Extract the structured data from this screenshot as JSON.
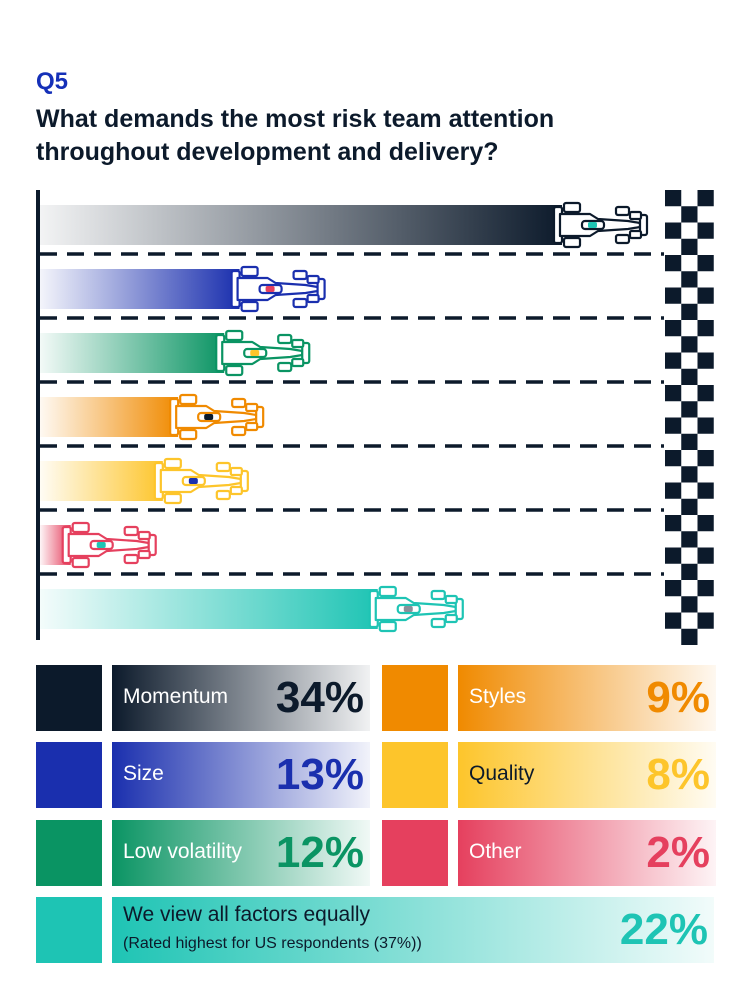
{
  "question_number": "Q5",
  "title": "What demands the most risk team attention throughout development and delivery?",
  "chart_data": {
    "type": "bar",
    "orientation": "horizontal",
    "categories": [
      "Momentum",
      "Size",
      "Low volatility",
      "Styles",
      "Quality",
      "Other",
      "We view all factors equally"
    ],
    "values": [
      34,
      13,
      12,
      9,
      8,
      2,
      22
    ],
    "unit": "%",
    "colors": [
      "#0c1a2b",
      "#1a2fae",
      "#0a9463",
      "#f08a00",
      "#fdc52b",
      "#e5405e",
      "#1ec4b4"
    ],
    "xlim": [
      0,
      34
    ],
    "grid": false,
    "legend_placement": "bottom"
  },
  "legend": [
    {
      "label": "Momentum",
      "value": "34%",
      "color": "#0c1a2b",
      "text_color": "#0c1a2b"
    },
    {
      "label": "Size",
      "value": "13%",
      "color": "#1a2fae",
      "text_color": "#1a2fae"
    },
    {
      "label": "Low volatility",
      "value": "12%",
      "color": "#0a9463",
      "text_color": "#0a9463"
    },
    {
      "label": "Styles",
      "value": "9%",
      "color": "#f08a00",
      "text_color": "#f08a00"
    },
    {
      "label": "Quality",
      "value": "8%",
      "color": "#fdc52b",
      "text_color": "#fdc52b"
    },
    {
      "label": "Other",
      "value": "2%",
      "color": "#e5405e",
      "text_color": "#e5405e"
    },
    {
      "label": "We view all factors equally",
      "sublabel": "(Rated highest for US respondents (37%))",
      "value": "22%",
      "color": "#1ec4b4",
      "text_color": "#1ec4b4"
    }
  ]
}
